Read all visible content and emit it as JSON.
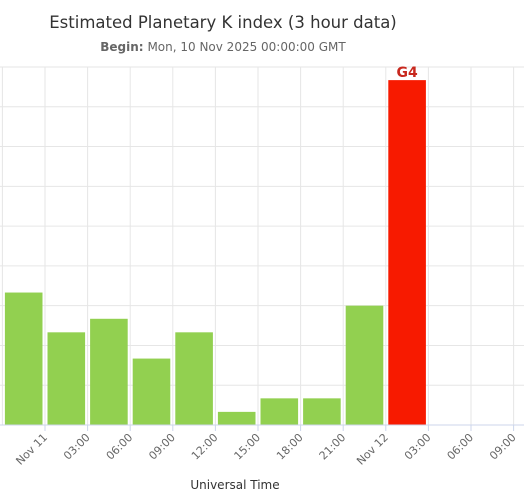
{
  "chart_data": {
    "type": "bar",
    "title": "Estimated Planetary K index (3 hour data)",
    "subtitle_label": "Begin:",
    "subtitle_value": "Mon, 10 Nov 2025 00:00:00 GMT",
    "xlabel": "Universal Time",
    "ylabel": "",
    "ylim": [
      0,
      9
    ],
    "grid": true,
    "tick_labels": [
      "Nov 11",
      "03:00",
      "06:00",
      "09:00",
      "12:00",
      "15:00",
      "18:00",
      "21:00",
      "Nov 12",
      "03:00",
      "06:00",
      "09:00"
    ],
    "values": [
      3.33,
      2.33,
      2.67,
      1.67,
      2.33,
      0.33,
      0.67,
      0.67,
      3.0,
      8.67
    ],
    "bar_labels": [
      "",
      "",
      "",
      "",
      "",
      "",
      "",
      "",
      "",
      "G4"
    ],
    "colors": {
      "normal": "#92d050",
      "storm": "#f71a00",
      "storm_label": "#c8281e",
      "grid": "#e6e6e6",
      "axis_text": "#666666"
    }
  }
}
